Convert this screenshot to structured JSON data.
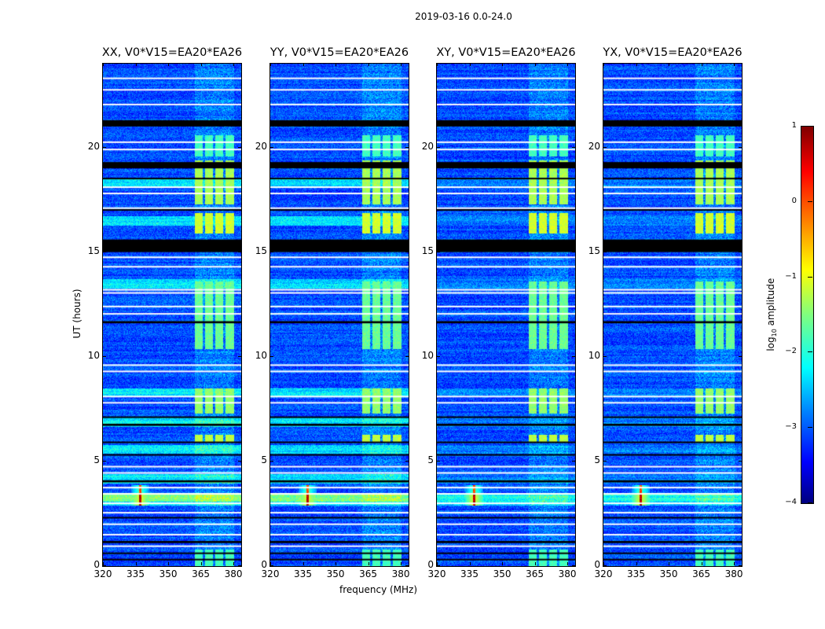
{
  "suptitle": "2019-03-16 0.0-24.0",
  "colorbar": {
    "label_prefix": "log",
    "label_sub": "10",
    "label_suffix": " amplitude",
    "ticks": [
      "1",
      "0",
      "−1",
      "−2",
      "−3",
      "−4"
    ],
    "tick_values": [
      1,
      0,
      -1,
      -2,
      -3,
      -4
    ],
    "range": [
      -4,
      1
    ],
    "colormap": "jet"
  },
  "chart_data": {
    "type": "heatmap",
    "title": "2019-03-16 0.0-24.0",
    "xlabel": "frequency (MHz)",
    "ylabel": "UT (hours)",
    "xlim": [
      320,
      383.6
    ],
    "ylim": [
      0,
      24
    ],
    "xticks": [
      320,
      335,
      350,
      365,
      380
    ],
    "yticks": [
      0,
      5,
      10,
      15,
      20
    ],
    "zlabel": "log10 amplitude",
    "zlim": [
      -4,
      1
    ],
    "background_level": -3.0,
    "rfi_band_mhz": [
      362,
      380
    ],
    "rfi_band_gaps_mhz": [
      366.2,
      371.0,
      375.6
    ],
    "rfi_bursts": [
      {
        "t": [
          0.0,
          0.8
        ],
        "level": -1.8
      },
      {
        "t": [
          5.9,
          6.3
        ],
        "level": -1.2
      },
      {
        "t": [
          7.3,
          8.5
        ],
        "level": -1.4
      },
      {
        "t": [
          10.4,
          13.6
        ],
        "level": -1.6
      },
      {
        "t": [
          15.9,
          16.9
        ],
        "level": -1.1
      },
      {
        "t": [
          17.3,
          19.4
        ],
        "level": -1.3
      },
      {
        "t": [
          19.6,
          20.6
        ],
        "level": -1.8
      }
    ],
    "point_source": {
      "freq": 337,
      "t": [
        2.9,
        3.9
      ],
      "level": 0.3
    },
    "broadband_rows_h": [
      3.3,
      4.2,
      5.6,
      6.9,
      8.3,
      13.5,
      16.5,
      18.3
    ],
    "flagged_white_h": [
      0.95,
      1.5,
      2.0,
      2.55,
      3.0,
      3.45,
      3.75,
      4.45,
      4.75,
      7.8,
      8.1,
      9.3,
      9.6,
      12.05,
      12.4,
      13.05,
      13.2,
      14.3,
      14.75,
      17.1,
      17.8,
      18.1,
      19.9,
      20.25,
      22.05,
      22.75,
      23.3
    ],
    "flagged_black_h": [
      [
        0.3,
        0.35
      ],
      [
        0.6,
        0.65
      ],
      [
        1.1,
        1.2
      ],
      [
        2.3,
        2.35
      ],
      [
        4.0,
        4.1
      ],
      [
        5.3,
        5.35
      ],
      [
        5.9,
        5.95
      ],
      [
        6.7,
        6.8
      ],
      [
        7.1,
        7.15
      ],
      [
        11.6,
        11.7
      ],
      [
        15.0,
        15.6
      ],
      [
        17.0,
        17.05
      ],
      [
        18.5,
        18.55
      ],
      [
        19.0,
        19.3
      ],
      [
        21.0,
        21.3
      ]
    ],
    "panels": [
      {
        "title": "XX, V0*V15=EA20*EA26",
        "broadband_scale": 1.0
      },
      {
        "title": "YY, V0*V15=EA20*EA26",
        "broadband_scale": 0.9
      },
      {
        "title": "XY, V0*V15=EA20*EA26",
        "broadband_scale": 0.3
      },
      {
        "title": "YX, V0*V15=EA20*EA26",
        "broadband_scale": 0.3
      }
    ]
  }
}
